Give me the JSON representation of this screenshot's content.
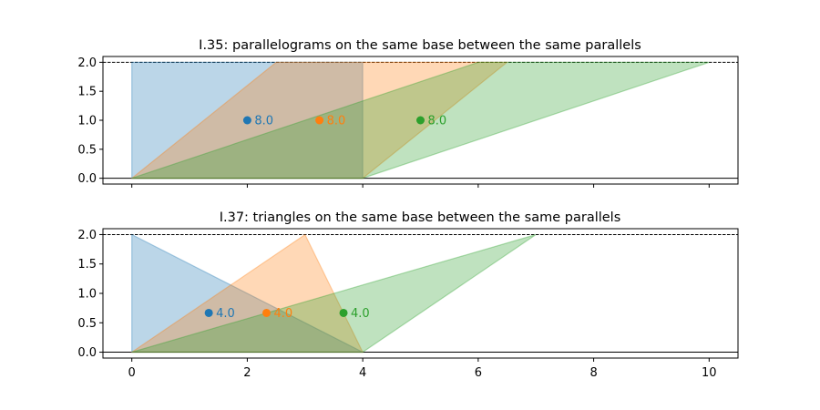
{
  "chart_data": [
    {
      "type": "area",
      "title": "I.35: parallelograms on the same base between the same parallels",
      "xlabel": "",
      "ylabel": "",
      "xlim": [
        -0.5,
        10.5
      ],
      "ylim": [
        -0.1,
        2.1
      ],
      "grid": false,
      "legend": "none",
      "y_ticks": [
        0.0,
        0.5,
        1.0,
        1.5,
        2.0
      ],
      "y_tick_labels": [
        "0.0",
        "0.5",
        "1.0",
        "1.5",
        "2.0"
      ],
      "x_ticks": [
        0,
        2,
        4,
        6,
        8,
        10
      ],
      "x_tick_labels": [],
      "reference_lines": [
        {
          "y": 0,
          "style": "solid",
          "color": "#000000"
        },
        {
          "y": 2,
          "style": "dashed",
          "color": "#000000"
        }
      ],
      "series": [
        {
          "color": "#1f77b4",
          "polygon": [
            [
              0,
              0
            ],
            [
              4,
              0
            ],
            [
              4,
              2
            ],
            [
              0,
              2
            ]
          ],
          "centroid": [
            2.0,
            1.0
          ],
          "label": "8.0"
        },
        {
          "color": "#ff7f0e",
          "polygon": [
            [
              0,
              0
            ],
            [
              4,
              0
            ],
            [
              6.5,
              2
            ],
            [
              2.5,
              2
            ]
          ],
          "centroid": [
            3.25,
            1.0
          ],
          "label": "8.0"
        },
        {
          "color": "#2ca02c",
          "polygon": [
            [
              0,
              0
            ],
            [
              4,
              0
            ],
            [
              10,
              2
            ],
            [
              6,
              2
            ]
          ],
          "centroid": [
            5.0,
            1.0
          ],
          "label": "8.0"
        }
      ]
    },
    {
      "type": "area",
      "title": "I.37: triangles on the same base between the same parallels",
      "xlabel": "",
      "ylabel": "",
      "xlim": [
        -0.5,
        10.5
      ],
      "ylim": [
        -0.1,
        2.1
      ],
      "grid": false,
      "legend": "none",
      "y_ticks": [
        0.0,
        0.5,
        1.0,
        1.5,
        2.0
      ],
      "y_tick_labels": [
        "0.0",
        "0.5",
        "1.0",
        "1.5",
        "2.0"
      ],
      "x_ticks": [
        0,
        2,
        4,
        6,
        8,
        10
      ],
      "x_tick_labels": [
        "0",
        "2",
        "4",
        "6",
        "8",
        "10"
      ],
      "reference_lines": [
        {
          "y": 0,
          "style": "solid",
          "color": "#000000"
        },
        {
          "y": 2,
          "style": "dashed",
          "color": "#000000"
        }
      ],
      "series": [
        {
          "color": "#1f77b4",
          "polygon": [
            [
              0,
              0
            ],
            [
              4,
              0
            ],
            [
              0,
              2
            ]
          ],
          "centroid": [
            1.333,
            0.667
          ],
          "label": "4.0"
        },
        {
          "color": "#ff7f0e",
          "polygon": [
            [
              0,
              0
            ],
            [
              4,
              0
            ],
            [
              3,
              2
            ]
          ],
          "centroid": [
            2.333,
            0.667
          ],
          "label": "4.0"
        },
        {
          "color": "#2ca02c",
          "polygon": [
            [
              0,
              0
            ],
            [
              4,
              0
            ],
            [
              7,
              2
            ]
          ],
          "centroid": [
            3.667,
            0.667
          ],
          "label": "4.0"
        }
      ]
    }
  ]
}
